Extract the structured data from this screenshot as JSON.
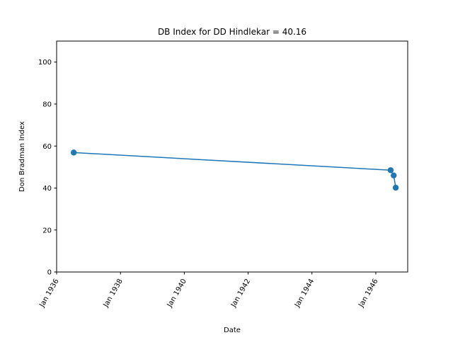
{
  "chart_data": {
    "type": "line",
    "title": "DB Index for DD Hindlekar = 40.16",
    "xlabel": "Date",
    "ylabel": "Don Bradman Index",
    "x_axis_kind": "date",
    "xlim": [
      "1936-01-01",
      "1947-01-01"
    ],
    "ylim": [
      0,
      110
    ],
    "x_ticks": [
      {
        "date": "1936-01-01",
        "label": "Jan 1936"
      },
      {
        "date": "1938-01-01",
        "label": "Jan 1938"
      },
      {
        "date": "1940-01-01",
        "label": "Jan 1940"
      },
      {
        "date": "1942-01-01",
        "label": "Jan 1942"
      },
      {
        "date": "1944-01-01",
        "label": "Jan 1944"
      },
      {
        "date": "1946-01-01",
        "label": "Jan 1946"
      }
    ],
    "y_ticks": [
      0,
      20,
      40,
      60,
      80,
      100
    ],
    "grid": false,
    "legend": false,
    "series": [
      {
        "color": "#1f77b4",
        "marker": "circle",
        "points": [
          {
            "x": "1936-07-15",
            "y": 56.9
          },
          {
            "x": "1946-06-20",
            "y": 48.5
          },
          {
            "x": "1946-07-25",
            "y": 46.0
          },
          {
            "x": "1946-08-17",
            "y": 40.16
          }
        ]
      }
    ]
  }
}
